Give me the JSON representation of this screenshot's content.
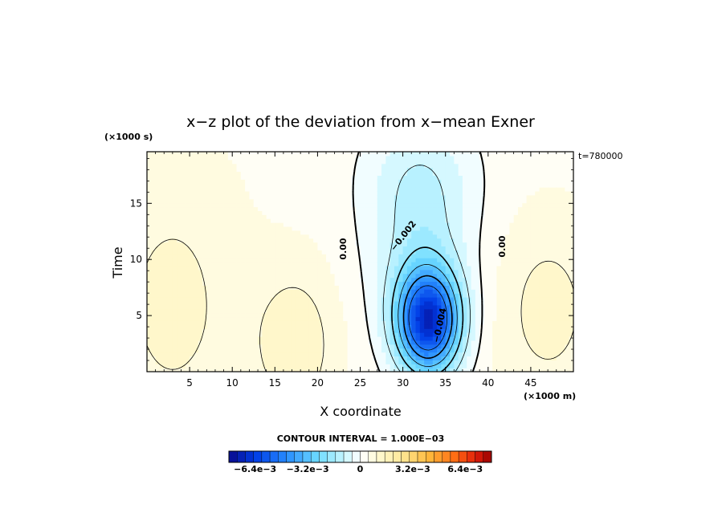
{
  "chart_data": {
    "type": "heatmap",
    "title": "x−z plot of the deviation from x−mean Exner",
    "xlabel": "X coordinate",
    "ylabel": "Time",
    "x_unit": "(×1000 m)",
    "y_unit": "(×1000 s)",
    "time_note": "t=780000",
    "contour_interval": "CONTOUR INTERVAL = 1.000E−03",
    "xlim": [
      0,
      50
    ],
    "ylim": [
      0,
      19.6
    ],
    "x_ticks": [
      5,
      10,
      15,
      20,
      25,
      30,
      35,
      40,
      45
    ],
    "y_ticks": [
      5,
      10,
      15
    ],
    "x_tick_labels": [
      "5",
      "10",
      "15",
      "20",
      "25",
      "30",
      "35",
      "40",
      "45"
    ],
    "y_tick_labels": [
      "5",
      "10",
      "15"
    ],
    "contour_labels": [
      "0.00",
      "0.00",
      "−0.002",
      "−0.004"
    ],
    "field_summary": {
      "min_value": -0.0068,
      "min_location": {
        "x": 33,
        "y": 4.5
      },
      "zero_contours_x": [
        22.5,
        41.5
      ]
    },
    "colorbar": {
      "range": [
        -0.008,
        0.008
      ],
      "levels": 32,
      "tick_labels": [
        "−6.4e−3",
        "−3.2e−3",
        "0",
        "3.2e−3",
        "6.4e−3"
      ],
      "tick_values": [
        -0.0064,
        -0.0032,
        0,
        0.0032,
        0.0064
      ]
    }
  }
}
